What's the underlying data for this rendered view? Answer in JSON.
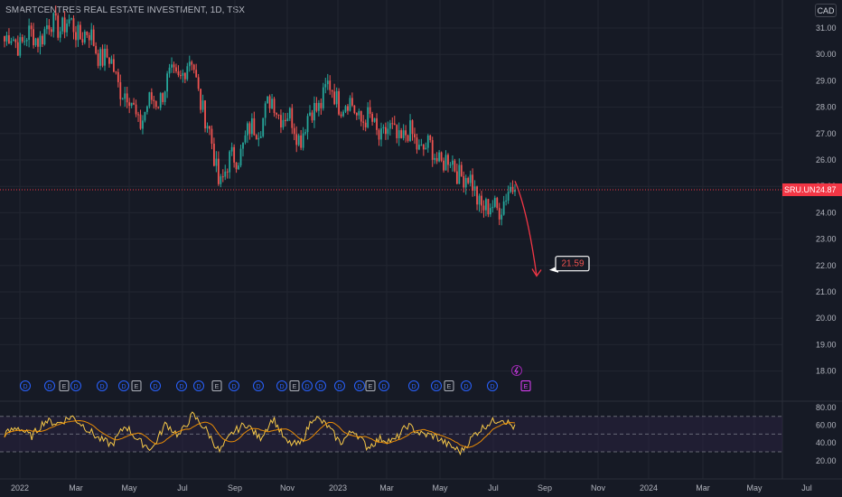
{
  "header": {
    "title": "SMARTCENTRES REAL ESTATE INVESTMENT, 1D, TSX",
    "currency": "CAD"
  },
  "colors": {
    "background": "#161a25",
    "grid": "#222631",
    "up": "#26a69a",
    "down": "#ef5350",
    "price_line": "#f23645",
    "rsi": "#f7c948",
    "rsi_ma": "#ff9800",
    "rsi_band": "#2a2340",
    "event_dividend": "#2962ff",
    "event_earnings": "#b2b5be",
    "event_earnings_upcoming": "#e040fb"
  },
  "chart_data": [
    {
      "type": "candlestick",
      "symbol": "SRU.UN",
      "title": "SMARTCENTRES REAL ESTATE INVESTMENT, 1D, TSX",
      "ylim": [
        17.5,
        31.8
      ],
      "y_ticks": [
        "31.00",
        "30.00",
        "29.00",
        "28.00",
        "27.00",
        "26.00",
        "25.00",
        "24.00",
        "23.00",
        "22.00",
        "21.00",
        "20.00",
        "19.00",
        "18.00"
      ],
      "x_ticks": [
        "2022",
        "Mar",
        "May",
        "Jul",
        "Sep",
        "Nov",
        "2023",
        "Mar",
        "May",
        "Jul",
        "Sep",
        "Nov",
        "2024",
        "Mar",
        "May",
        "Jul"
      ],
      "last_price": {
        "label": "SRU.UN",
        "value": "24.87"
      },
      "key_points": [
        {
          "date": "2022-01",
          "close": 30.5
        },
        {
          "date": "2022-02",
          "close": 30.6
        },
        {
          "date": "2022-03",
          "close": 31.2
        },
        {
          "date": "2022-04",
          "close": 30.8
        },
        {
          "date": "2022-05",
          "close": 29.5
        },
        {
          "date": "2022-06",
          "close": 27.5
        },
        {
          "date": "2022-07",
          "close": 28.8
        },
        {
          "date": "2022-08",
          "close": 29.7
        },
        {
          "date": "2022-09",
          "close": 25.2
        },
        {
          "date": "2022-10",
          "close": 26.8
        },
        {
          "date": "2022-11",
          "close": 28.2
        },
        {
          "date": "2022-12",
          "close": 27.0
        },
        {
          "date": "2023-01",
          "close": 28.7
        },
        {
          "date": "2023-02",
          "close": 27.9
        },
        {
          "date": "2023-03",
          "close": 27.0
        },
        {
          "date": "2023-04",
          "close": 26.9
        },
        {
          "date": "2023-05",
          "close": 26.2
        },
        {
          "date": "2023-06",
          "close": 25.6
        },
        {
          "date": "2023-07",
          "close": 24.0
        },
        {
          "date": "2023-08",
          "close": 24.87
        }
      ],
      "annotations": [
        {
          "type": "arrow",
          "from": {
            "date": "2023-08",
            "value": 25.2
          },
          "to": {
            "date": "2023-09",
            "value": 21.6
          }
        },
        {
          "type": "callout",
          "text": "21.59",
          "value": 21.59
        }
      ],
      "events": {
        "row": [
          "D",
          "D",
          "E",
          "D",
          "D",
          "D",
          "E",
          "D",
          "D",
          "D",
          "E",
          "D",
          "D",
          "D",
          "E",
          "D",
          "D",
          "D",
          "D",
          "E",
          "D",
          "D",
          "D",
          "E",
          "D",
          "D",
          "E"
        ]
      }
    },
    {
      "type": "line",
      "name": "RSI",
      "ylim": [
        15,
        85
      ],
      "y_ticks": [
        "80.00",
        "60.00",
        "40.00",
        "20.00"
      ],
      "bands": [
        70,
        50,
        30
      ],
      "key_points": [
        50,
        58,
        47,
        65,
        62,
        70,
        58,
        45,
        38,
        60,
        42,
        33,
        62,
        48,
        72,
        55,
        30,
        52,
        62,
        45,
        68,
        40,
        38,
        70,
        60,
        40,
        55,
        35,
        45,
        42,
        60,
        50,
        48,
        38,
        30,
        50,
        62,
        68,
        57
      ]
    }
  ]
}
